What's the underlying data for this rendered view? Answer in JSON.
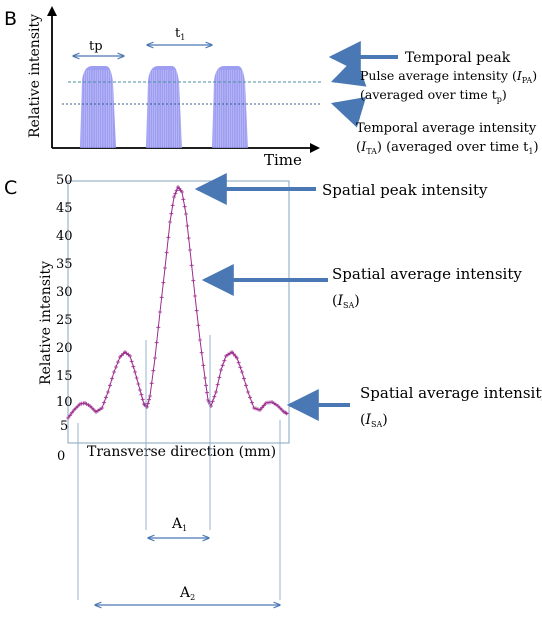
{
  "panel_b": {
    "letter": "B",
    "ylabel": "Relative intensity",
    "xlabel": "Time",
    "tp_label": "tp",
    "t1_label": "t",
    "t1_sub": "1",
    "annotations": {
      "temporal_peak": "Temporal peak",
      "pulse_avg_line1": "Pulse average intensity (",
      "pulse_avg_sym": "I",
      "pulse_avg_sub": "PA",
      "pulse_avg_close": ")",
      "pulse_avg_line2": "(averaged over time t",
      "pulse_avg_line2_sub": "p",
      "pulse_avg_line2_close": ")",
      "temporal_avg_line1": "Temporal average intensity",
      "temporal_avg_open": "(",
      "temporal_avg_sym": "I",
      "temporal_avg_sub": "TA",
      "temporal_avg_line2": ") (averaged over time t",
      "temporal_avg_line2_sub": "1",
      "temporal_avg_line2_close": ")"
    }
  },
  "panel_c": {
    "letter": "C",
    "ylabel": "Relative intensity",
    "xlabel": "Transverse direction (mm)",
    "yticks": [
      "50",
      "45",
      "40",
      "35",
      "30",
      "25",
      "20",
      "15",
      "10",
      "5",
      "0"
    ],
    "annotations": {
      "spatial_peak": "Spatial peak intensity",
      "spatial_avg_1": "Spatial average intensity",
      "spatial_avg_1_open": "(",
      "spatial_avg_1_sym": "I",
      "spatial_avg_1_sub": "SA",
      "spatial_avg_1_close": ")",
      "spatial_avg_2": "Spatial average intensity",
      "spatial_avg_2_open": "(",
      "spatial_avg_2_sym": "I",
      "spatial_avg_2_sub": "SA",
      "spatial_avg_2_close": ")"
    },
    "a1_label": "A",
    "a1_sub": "1",
    "a2_label": "A",
    "a2_sub": "2"
  },
  "colors": {
    "pulse_fill": "#8c8cf0",
    "profile_line": "#9b2c8e",
    "arrow_blue": "#4a78b5",
    "dashed_line": "#4a8fa0",
    "axis": "#000000"
  }
}
